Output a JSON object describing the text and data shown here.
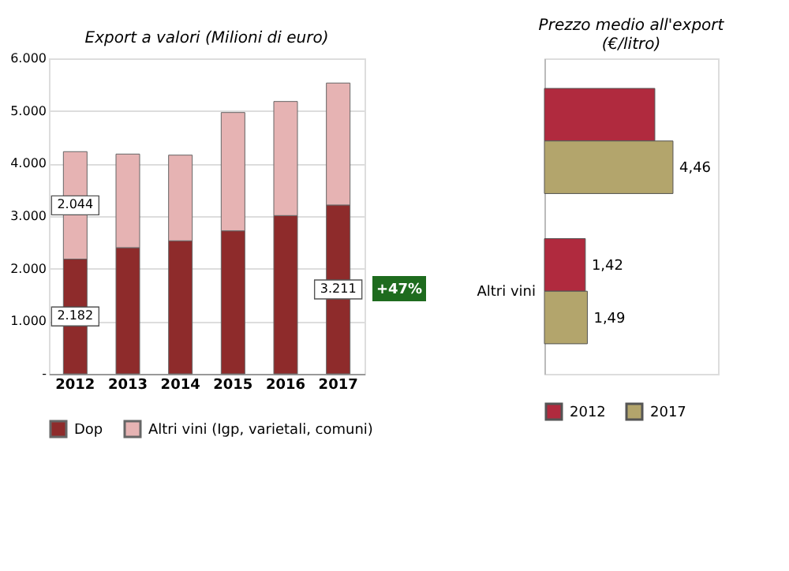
{
  "chart_data": [
    {
      "type": "bar",
      "stacked": true,
      "title": "Export a valori (Milioni di euro)",
      "categories": [
        "2012",
        "2013",
        "2014",
        "2015",
        "2016",
        "2017"
      ],
      "series": [
        {
          "name": "Dop",
          "color": "#8e2b2b",
          "values": [
            2182,
            2400,
            2530,
            2720,
            3010,
            3211
          ],
          "value_labels": [
            "2.182",
            null,
            null,
            null,
            null,
            "3.211"
          ]
        },
        {
          "name": "Altri vini (Igp, varietali, comuni)",
          "color": "#e6b3b3",
          "values": [
            2044,
            1780,
            1630,
            2250,
            2170,
            2320
          ],
          "value_labels": [
            "2.044",
            null,
            null,
            null,
            null,
            null
          ]
        }
      ],
      "ylim": [
        0,
        6000
      ],
      "yticks": [
        {
          "value": 0,
          "label": "-"
        },
        {
          "value": 1000,
          "label": "1.000"
        },
        {
          "value": 2000,
          "label": "2.000"
        },
        {
          "value": 3000,
          "label": "3.000"
        },
        {
          "value": 4000,
          "label": "4.000"
        },
        {
          "value": 5000,
          "label": "5.000"
        },
        {
          "value": 6000,
          "label": "6.000"
        }
      ],
      "grid": "y",
      "legend": "bottom",
      "annotations": [
        "+47%"
      ]
    },
    {
      "type": "bar",
      "orientation": "horizontal",
      "title": "Prezzo medio all'export\n(€/litro)",
      "categories": [
        null,
        "Altri vini"
      ],
      "series": [
        {
          "name": "2012",
          "color": "#b02a3e",
          "values": [
            3.83,
            1.42
          ],
          "value_labels": [
            null,
            "1,42"
          ]
        },
        {
          "name": "2017",
          "color": "#b3a56c",
          "values": [
            4.46,
            1.49
          ],
          "value_labels": [
            "4,46",
            "1,49"
          ]
        }
      ],
      "legend": "bottom"
    }
  ]
}
